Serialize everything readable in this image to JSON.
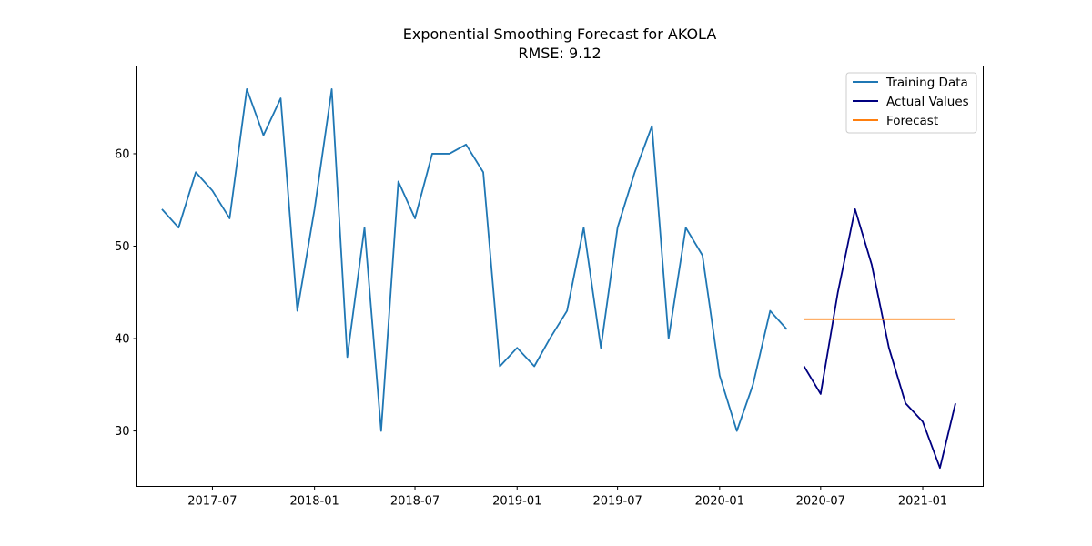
{
  "chart_data": {
    "type": "line",
    "title": "Exponential Smoothing Forecast for AKOLA",
    "subtitle": "RMSE: 9.12",
    "xlabel": "",
    "ylabel": "",
    "x_ticks": [
      "2017-07",
      "2018-01",
      "2018-07",
      "2019-01",
      "2019-07",
      "2020-01",
      "2020-07",
      "2021-01"
    ],
    "y_ticks": [
      30,
      40,
      50,
      60
    ],
    "xlim": [
      "2017-02-15",
      "2021-04-20"
    ],
    "ylim": [
      24,
      69.5
    ],
    "grid": false,
    "legend_position": "top-right",
    "series": [
      {
        "name": "Training Data",
        "color": "#1f77b4",
        "x": [
          "2017-04",
          "2017-05",
          "2017-06",
          "2017-07",
          "2017-08",
          "2017-09",
          "2017-10",
          "2017-11",
          "2017-12",
          "2018-01",
          "2018-02",
          "2018-03",
          "2018-04",
          "2018-05",
          "2018-06",
          "2018-07",
          "2018-08",
          "2018-09",
          "2018-10",
          "2018-11",
          "2018-12",
          "2019-01",
          "2019-02",
          "2019-03",
          "2019-04",
          "2019-05",
          "2019-06",
          "2019-07",
          "2019-08",
          "2019-09",
          "2019-10",
          "2019-11",
          "2019-12",
          "2020-01",
          "2020-02",
          "2020-03",
          "2020-04",
          "2020-05"
        ],
        "values": [
          54,
          52,
          58,
          56,
          53,
          67,
          62,
          66,
          43,
          54,
          67,
          38,
          52,
          30,
          57,
          53,
          60,
          60,
          61,
          58,
          37,
          39,
          37,
          40,
          43,
          52,
          39,
          52,
          58,
          63,
          40,
          52,
          49,
          36,
          30,
          35,
          43,
          41
        ]
      },
      {
        "name": "Actual Values",
        "color": "#000080",
        "x": [
          "2020-06",
          "2020-07",
          "2020-08",
          "2020-09",
          "2020-10",
          "2020-11",
          "2020-12",
          "2021-01",
          "2021-02",
          "2021-03"
        ],
        "values": [
          37,
          34,
          45,
          54,
          48,
          39,
          33,
          31,
          26,
          33
        ]
      },
      {
        "name": "Forecast",
        "color": "#ff7f0e",
        "x": [
          "2020-06",
          "2020-07",
          "2020-08",
          "2020-09",
          "2020-10",
          "2020-11",
          "2020-12",
          "2021-01",
          "2021-02",
          "2021-03"
        ],
        "values": [
          42.1,
          42.1,
          42.1,
          42.1,
          42.1,
          42.1,
          42.1,
          42.1,
          42.1,
          42.1
        ]
      }
    ]
  }
}
